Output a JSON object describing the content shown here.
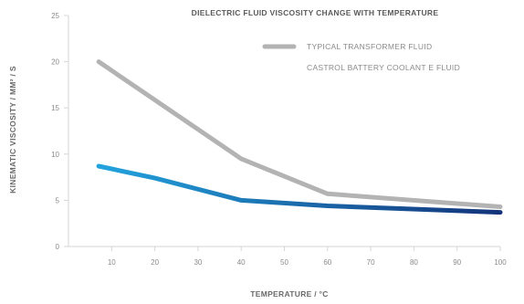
{
  "chart_data": {
    "type": "line",
    "title": "DIELECTRIC FLUID VISCOSITY CHANGE WITH TEMPERATURE",
    "xlabel": "TEMPERATURE / °C",
    "ylabel": "KINEMATIC VISCOSITY / MM² / S",
    "xlim": [
      0,
      100
    ],
    "ylim": [
      0,
      25
    ],
    "x_ticks": [
      10,
      20,
      30,
      40,
      50,
      60,
      70,
      80,
      90,
      100
    ],
    "y_ticks": [
      0,
      5,
      10,
      15,
      20,
      25
    ],
    "legend_position": "top-right",
    "grid": false,
    "series": [
      {
        "name": "TYPICAL TRANSFORMER FLUID",
        "color": "#b3b3b3",
        "x": [
          7,
          40,
          60,
          100
        ],
        "y": [
          20,
          9.5,
          5.7,
          4.3
        ]
      },
      {
        "name": "CASTROL BATTERY COOLANT E FLUID",
        "color": "#1e90d0",
        "x": [
          7,
          20,
          40,
          60,
          100
        ],
        "y": [
          8.7,
          7.4,
          5.0,
          4.4,
          3.7
        ]
      }
    ]
  }
}
